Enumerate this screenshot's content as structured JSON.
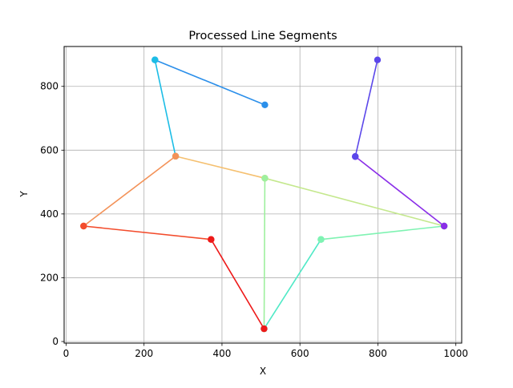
{
  "chart_data": {
    "type": "line",
    "title": "Processed Line Segments",
    "xlabel": "X",
    "ylabel": "Y",
    "xlim": [
      -5,
      1015
    ],
    "ylim": [
      -5,
      925
    ],
    "xticks": [
      0,
      200,
      400,
      600,
      800,
      1000
    ],
    "yticks": [
      0,
      200,
      400,
      600,
      800
    ],
    "grid": true,
    "segments": [
      {
        "x": [
          510,
          228
        ],
        "y": [
          742,
          883
        ],
        "color": "#2b8fea"
      },
      {
        "x": [
          228,
          281
        ],
        "y": [
          883,
          581
        ],
        "color": "#1cbde6"
      },
      {
        "x": [
          281,
          510
        ],
        "y": [
          581,
          512
        ],
        "color": "#f5c070"
      },
      {
        "x": [
          510,
          970
        ],
        "y": [
          512,
          362
        ],
        "color": "#c4e88d"
      },
      {
        "x": [
          510,
          508
        ],
        "y": [
          512,
          40
        ],
        "color": "#9ef09e"
      },
      {
        "x": [
          508,
          654
        ],
        "y": [
          40,
          320
        ],
        "color": "#4fe9c6"
      },
      {
        "x": [
          654,
          970
        ],
        "y": [
          320,
          362
        ],
        "color": "#7ff3b2"
      },
      {
        "x": [
          970,
          742
        ],
        "y": [
          362,
          580
        ],
        "color": "#8a2ee8"
      },
      {
        "x": [
          742,
          799
        ],
        "y": [
          580,
          883
        ],
        "color": "#5b47ea"
      },
      {
        "x": [
          281,
          45
        ],
        "y": [
          581,
          362
        ],
        "color": "#f39258"
      },
      {
        "x": [
          45,
          372
        ],
        "y": [
          362,
          320
        ],
        "color": "#f34c2c"
      },
      {
        "x": [
          372,
          508
        ],
        "y": [
          320,
          40
        ],
        "color": "#ee1919"
      }
    ]
  }
}
